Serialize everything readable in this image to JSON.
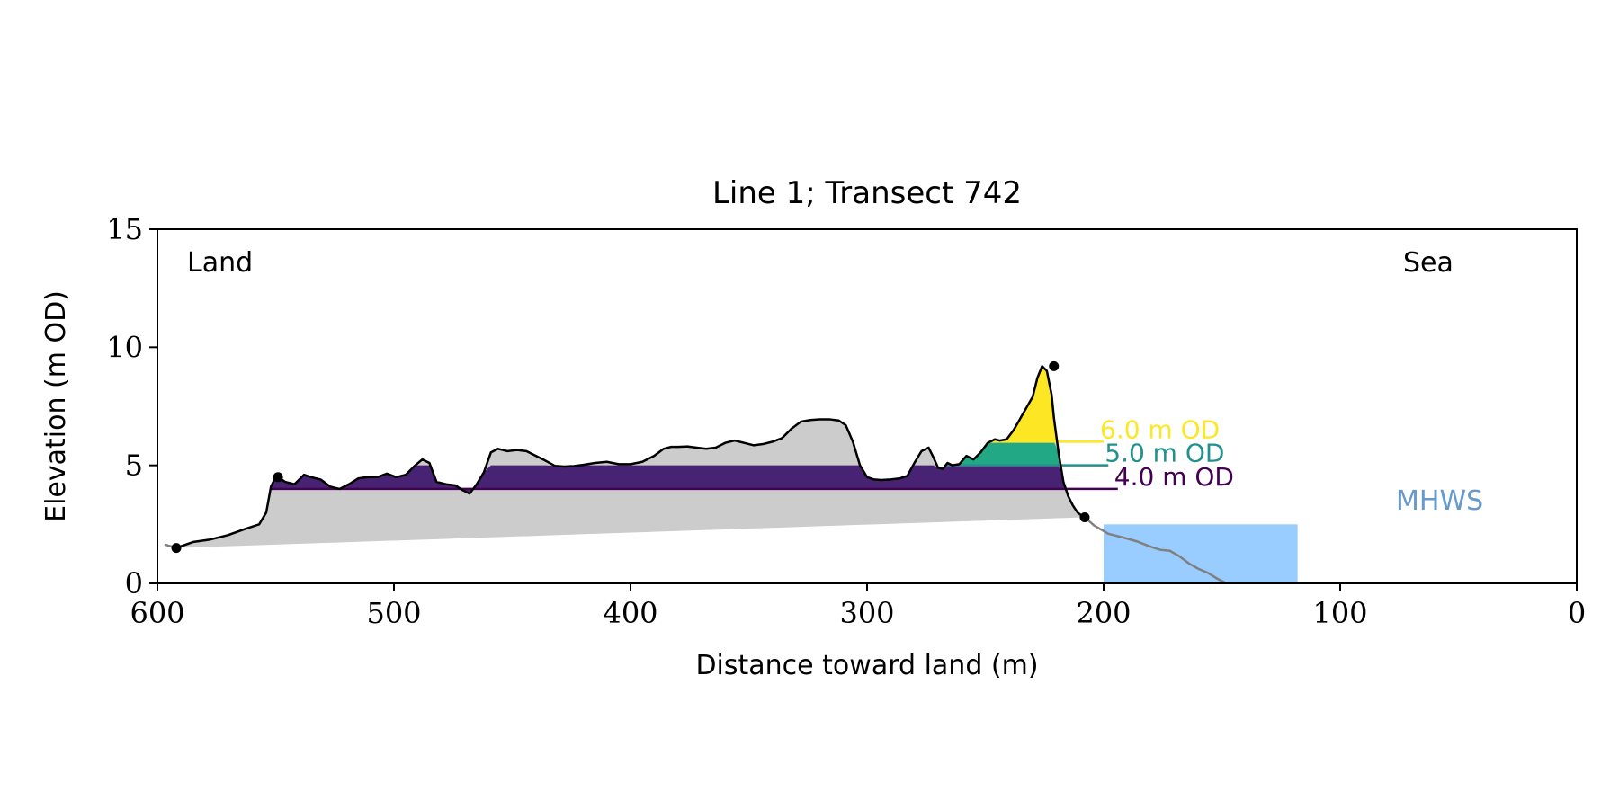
{
  "chart_data": {
    "type": "area",
    "title": "Line 1; Transect 742",
    "xlabel": "Distance toward land (m)",
    "ylabel": "Elevation (m OD)",
    "xlim": [
      600,
      0
    ],
    "ylim": [
      0,
      15
    ],
    "x_ticks": [
      "600",
      "500",
      "400",
      "300",
      "200",
      "100",
      "0"
    ],
    "y_ticks": [
      "0",
      "5",
      "10",
      "15"
    ],
    "grid": false,
    "annotations": {
      "land": "Land",
      "sea": "Sea",
      "mhws": "MHWS"
    },
    "mhws": {
      "level": 2.5,
      "x_from": 200,
      "x_to": 118,
      "color": "#99ccff"
    },
    "profile": {
      "x": [
        592,
        585,
        578,
        570,
        563,
        557,
        554,
        552,
        550,
        549,
        546,
        542,
        538,
        535,
        531,
        527,
        523,
        519,
        515,
        511,
        507,
        503,
        499,
        495,
        491,
        488,
        485,
        482,
        478,
        474,
        471,
        468,
        465,
        462,
        459,
        456,
        452,
        448,
        444,
        440,
        436,
        432,
        428,
        424,
        420,
        415,
        410,
        405,
        400,
        395,
        390,
        386,
        383,
        380,
        376,
        372,
        368,
        364,
        360,
        356,
        352,
        348,
        344,
        340,
        336,
        332,
        328,
        324,
        320,
        316,
        312,
        309,
        306,
        303,
        300,
        297,
        294,
        290,
        286,
        283,
        280,
        277,
        274,
        272,
        270,
        268,
        266,
        264,
        261,
        258,
        255,
        252,
        249,
        246,
        244,
        241,
        238,
        236,
        234,
        232,
        230,
        228,
        226,
        224,
        222,
        221,
        219,
        217,
        215,
        213,
        211,
        209,
        208
      ],
      "y": [
        1.5,
        1.75,
        1.85,
        2.05,
        2.3,
        2.5,
        3.0,
        4.1,
        4.5,
        4.5,
        4.3,
        4.2,
        4.6,
        4.5,
        4.4,
        4.1,
        4.0,
        4.2,
        4.45,
        4.5,
        4.5,
        4.65,
        4.5,
        4.6,
        5.0,
        5.25,
        5.1,
        4.3,
        4.2,
        4.15,
        3.95,
        3.8,
        4.2,
        4.7,
        5.55,
        5.7,
        5.6,
        5.65,
        5.6,
        5.4,
        5.2,
        4.98,
        4.95,
        4.97,
        5.02,
        5.1,
        5.15,
        5.05,
        5.05,
        5.15,
        5.4,
        5.7,
        5.78,
        5.78,
        5.8,
        5.75,
        5.7,
        5.75,
        5.95,
        6.05,
        5.95,
        5.85,
        5.9,
        6.0,
        6.15,
        6.55,
        6.85,
        6.92,
        6.95,
        6.95,
        6.9,
        6.7,
        6.0,
        5.0,
        4.5,
        4.4,
        4.38,
        4.4,
        4.45,
        4.55,
        5.1,
        5.6,
        5.75,
        5.35,
        4.9,
        4.85,
        5.1,
        5.0,
        5.05,
        5.4,
        5.25,
        5.55,
        5.95,
        6.1,
        6.05,
        6.1,
        6.5,
        6.85,
        7.2,
        7.55,
        7.9,
        8.7,
        9.2,
        9.0,
        8.0,
        7.0,
        5.5,
        4.3,
        3.7,
        3.3,
        3.0,
        2.85,
        2.8
      ]
    },
    "offshore": {
      "x": [
        208,
        204,
        198,
        192,
        186,
        180,
        176,
        172,
        168,
        164,
        160,
        156,
        152,
        148
      ],
      "y": [
        2.8,
        2.45,
        2.1,
        1.95,
        1.78,
        1.55,
        1.42,
        1.38,
        1.15,
        0.85,
        0.62,
        0.45,
        0.2,
        0.0
      ]
    },
    "landward_tail": {
      "x": [
        597,
        592
      ],
      "y": [
        1.65,
        1.5
      ]
    },
    "toe_line": {
      "x": [
        592,
        208
      ],
      "y": [
        1.5,
        2.8
      ]
    },
    "markers": [
      {
        "x": 592,
        "y": 1.5
      },
      {
        "x": 549,
        "y": 4.5
      },
      {
        "x": 221,
        "y": 9.2
      },
      {
        "x": 208,
        "y": 2.8
      }
    ],
    "series": [
      {
        "name": "6.0 m OD",
        "level": 6.0,
        "x_min": 200,
        "color": "#fde725"
      },
      {
        "name": "5.0 m OD",
        "level": 5.0,
        "x_min": 198,
        "color": "#21918c"
      },
      {
        "name": "4.0 m OD",
        "level": 4.0,
        "x_min": 194,
        "color": "#440154"
      }
    ],
    "level_fills": [
      "#fde725",
      "#22a884",
      "#482374"
    ],
    "base_fill": "#cccccc",
    "profile_color": "#000000",
    "offshore_color": "#808080"
  }
}
